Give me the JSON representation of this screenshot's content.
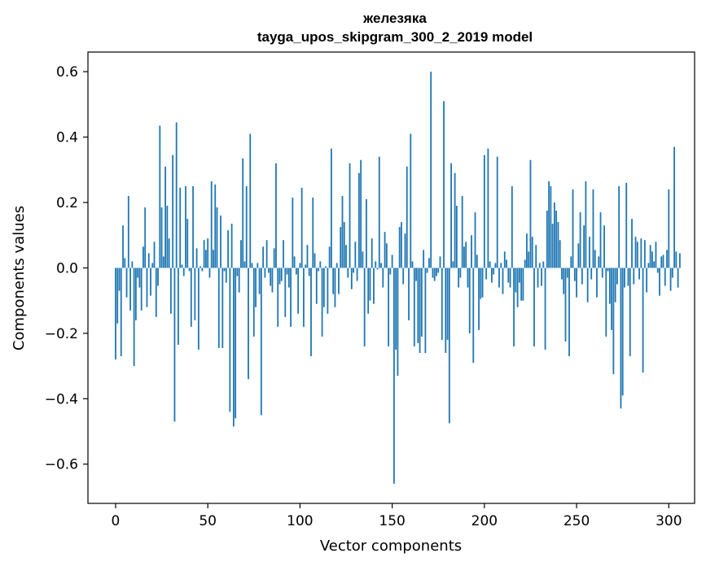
{
  "chart_data": {
    "type": "bar",
    "title_line1": "железяка",
    "title_line2": "tayga_upos_skipgram_300_2_2019 model",
    "xlabel": "Vector components",
    "ylabel": "Components values",
    "xlim": [
      -15,
      314
    ],
    "ylim": [
      -0.72,
      0.66
    ],
    "xticks": [
      0,
      50,
      100,
      150,
      200,
      250,
      300
    ],
    "xtick_labels": [
      "0",
      "50",
      "100",
      "150",
      "200",
      "250",
      "300"
    ],
    "yticks": [
      -0.6,
      -0.4,
      -0.2,
      0.0,
      0.2,
      0.4,
      0.6
    ],
    "ytick_labels": [
      "−0.6",
      "−0.4",
      "−0.2",
      "0.0",
      "0.2",
      "0.4",
      "0.6"
    ],
    "bar_color": "#1f77b4",
    "values": [
      -0.28,
      -0.17,
      -0.07,
      -0.27,
      0.13,
      0.03,
      -0.09,
      0.22,
      -0.13,
      0.02,
      -0.3,
      -0.16,
      -0.03,
      -0.06,
      -0.13,
      0.065,
      0.185,
      -0.12,
      0.045,
      -0.085,
      0.015,
      0.08,
      -0.15,
      -0.055,
      0.435,
      0.185,
      0.035,
      0.31,
      0.19,
      0.09,
      -0.14,
      0.345,
      -0.47,
      0.445,
      -0.235,
      0.245,
      0.01,
      -0.025,
      0.25,
      0.15,
      -0.01,
      -0.18,
      0.25,
      -0.16,
      0.06,
      -0.25,
      0.005,
      -0.01,
      0.085,
      0.055,
      0.09,
      -0.03,
      0.265,
      0.055,
      0.255,
      0.185,
      -0.245,
      0.16,
      -0.245,
      -0.01,
      -0.045,
      0.115,
      -0.44,
      0.135,
      -0.485,
      -0.46,
      -0.025,
      -0.075,
      0.085,
      0.335,
      0.02,
      0.25,
      -0.34,
      0.41,
      0.015,
      -0.21,
      -0.12,
      0.015,
      -0.08,
      -0.45,
      0.065,
      -0.03,
      0.085,
      -0.015,
      -0.055,
      -0.075,
      0.06,
      0.32,
      -0.18,
      -0.05,
      -0.04,
      0.085,
      -0.15,
      -0.02,
      -0.06,
      -0.18,
      0.215,
      0.035,
      -0.02,
      -0.14,
      0.015,
      0.245,
      -0.18,
      0.01,
      0.07,
      -0.025,
      -0.27,
      0.215,
      0.045,
      -0.11,
      -0.01,
      0.02,
      -0.21,
      -0.12,
      0.005,
      -0.14,
      0.065,
      0.365,
      -0.08,
      -0.12,
      0.015,
      -0.08,
      0.125,
      0.22,
      0.14,
      0.07,
      -0.03,
      0.32,
      -0.065,
      -0.015,
      0.08,
      -0.04,
      0.29,
      0.33,
      0.05,
      -0.24,
      0.21,
      -0.14,
      -0.1,
      0.09,
      -0.11,
      0.02,
      -0.005,
      0.34,
      0.015,
      -0.06,
      0.11,
      0.075,
      -0.24,
      -0.02,
      0.04,
      -0.66,
      -0.25,
      -0.33,
      0.125,
      0.14,
      -0.05,
      0.105,
      0.31,
      -0.16,
      0.41,
      0.02,
      -0.24,
      -0.04,
      -0.23,
      -0.26,
      -0.21,
      0.055,
      -0.26,
      -0.015,
      0.03,
      0.6,
      -0.03,
      -0.04,
      -0.025,
      -0.015,
      0.035,
      -0.22,
      0.51,
      -0.26,
      -0.22,
      -0.475,
      0.32,
      0.02,
      0.29,
      0.19,
      -0.06,
      -0.03,
      0.22,
      0.065,
      0.08,
      -0.06,
      -0.2,
      0.1,
      -0.29,
      0.17,
      0.04,
      -0.19,
      -0.095,
      -0.09,
      0.345,
      -0.035,
      0.365,
      0.02,
      -0.045,
      -0.02,
      0.015,
      0.34,
      -0.06,
      0.015,
      -0.08,
      0.05,
      0.025,
      -0.045,
      -0.06,
      0.25,
      -0.24,
      -0.075,
      -0.12,
      -0.045,
      -0.1,
      -0.1,
      0.025,
      0.105,
      0.05,
      0.33,
      0.095,
      -0.24,
      0.07,
      -0.06,
      0.015,
      -0.055,
      0.02,
      -0.25,
      0.175,
      0.265,
      0.25,
      0.135,
      0.2,
      0.175,
      0.14,
      0.085,
      -0.035,
      -0.08,
      -0.225,
      -0.03,
      -0.27,
      0.035,
      0.24,
      -0.04,
      -0.09,
      0.075,
      0.17,
      -0.05,
      0.13,
      0.265,
      -0.105,
      0.095,
      -0.035,
      0.24,
      0.055,
      -0.09,
      0.035,
      0.17,
      -0.03,
      0.13,
      -0.21,
      -0.01,
      -0.11,
      -0.19,
      -0.325,
      -0.105,
      -0.05,
      0.25,
      -0.43,
      -0.39,
      -0.06,
      0.26,
      -0.055,
      -0.27,
      0.15,
      -0.05,
      0.095,
      0.08,
      -0.035,
      0.09,
      -0.32,
      0.085,
      -0.075,
      0.015,
      0.07,
      0.05,
      0.02,
      0.08,
      -0.015,
      -0.085,
      0.035,
      0.04,
      -0.055,
      0.055,
      0.24,
      -0.07,
      -0.03,
      0.37,
      0.05,
      -0.06,
      0.045
    ]
  }
}
